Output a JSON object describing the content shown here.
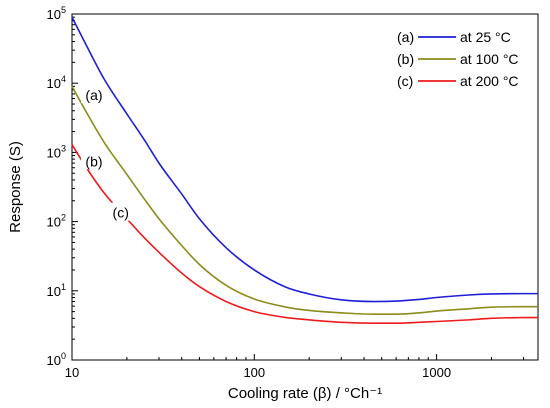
{
  "chart_data": {
    "type": "line",
    "xlabel": "Cooling rate (β) / °Ch⁻¹",
    "ylabel": "Response (S)",
    "xscale": "log",
    "yscale": "log",
    "xlim": [
      10,
      3600
    ],
    "ylim": [
      1,
      100000
    ],
    "x_ticks": [
      {
        "value": 10,
        "label": "10"
      },
      {
        "value": 100,
        "label": "100"
      },
      {
        "value": 1000,
        "label": "1000"
      }
    ],
    "y_ticks": [
      {
        "value": 1,
        "base": "10",
        "exp": "0"
      },
      {
        "value": 10,
        "base": "10",
        "exp": "1"
      },
      {
        "value": 100,
        "base": "10",
        "exp": "2"
      },
      {
        "value": 1000,
        "base": "10",
        "exp": "3"
      },
      {
        "value": 10000,
        "base": "10",
        "exp": "4"
      },
      {
        "value": 100000,
        "base": "10",
        "exp": "5"
      }
    ],
    "grid": false,
    "legend_position": "top-right",
    "series": [
      {
        "id": "a",
        "name": "at 25 °C",
        "key": "(a)",
        "color": "#1f1fd6",
        "x": [
          10,
          12,
          15,
          20,
          25,
          30,
          40,
          50,
          70,
          100,
          150,
          200,
          300,
          450,
          600,
          800,
          1000,
          1500,
          2000,
          3000,
          3600
        ],
        "y": [
          90000,
          35000,
          11500,
          3600,
          1500,
          700,
          250,
          110,
          42,
          20,
          11.2,
          9,
          7.4,
          7,
          7.1,
          7.5,
          8,
          8.7,
          9,
          9.1,
          9.1
        ]
      },
      {
        "id": "b",
        "name": "at 100 °C",
        "key": "(b)",
        "color": "#8c8c1a",
        "x": [
          10,
          12,
          15,
          20,
          25,
          30,
          40,
          50,
          70,
          100,
          150,
          200,
          300,
          450,
          600,
          800,
          1000,
          1500,
          2000,
          3000,
          3600
        ],
        "y": [
          9000,
          3800,
          1400,
          480,
          210,
          110,
          45,
          24,
          12,
          7.6,
          5.8,
          5.2,
          4.8,
          4.6,
          4.6,
          4.8,
          5.1,
          5.5,
          5.8,
          5.9,
          5.9
        ]
      },
      {
        "id": "c",
        "name": "at 200 °C",
        "key": "(c)",
        "color": "#ee1c1c",
        "x": [
          10,
          12,
          15,
          20,
          25,
          30,
          40,
          50,
          70,
          100,
          150,
          200,
          300,
          450,
          600,
          800,
          1000,
          1500,
          2000,
          3000,
          3600
        ],
        "y": [
          1300,
          600,
          260,
          110,
          58,
          36,
          18,
          11.5,
          7,
          5,
          4.1,
          3.8,
          3.5,
          3.4,
          3.4,
          3.5,
          3.6,
          3.8,
          4,
          4.1,
          4.1
        ]
      }
    ],
    "annotations": [
      {
        "text": "(a)",
        "x": 13.2,
        "y": 6500
      },
      {
        "text": "(b)",
        "x": 13.2,
        "y": 720
      },
      {
        "text": "(c)",
        "x": 18.5,
        "y": 130
      }
    ]
  }
}
